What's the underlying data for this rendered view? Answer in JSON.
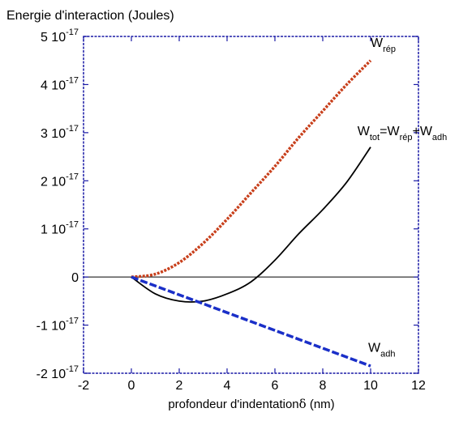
{
  "chart_data": {
    "type": "line",
    "title": "Energie d'interaction (Joules)",
    "xlabel_text": "profondeur d'indentation",
    "xlabel_symbol": "δ",
    "xlabel_unit": " (nm)",
    "xlim": [
      -2,
      12
    ],
    "ylim": [
      -2e-17,
      5e-17
    ],
    "x_ticks": [
      -2,
      0,
      2,
      4,
      6,
      8,
      10,
      12
    ],
    "x_tick_labels": [
      "-2",
      "0",
      "2",
      "4",
      "6",
      "8",
      "10",
      "12"
    ],
    "y_ticks": [
      {
        "value": -2e-17,
        "mant": "-2 10",
        "exp": "-17"
      },
      {
        "value": -1e-17,
        "mant": "-1 10",
        "exp": "-17"
      },
      {
        "value": 0,
        "mant": "0",
        "exp": ""
      },
      {
        "value": 1e-17,
        "mant": "1 10",
        "exp": "-17"
      },
      {
        "value": 2e-17,
        "mant": "2 10",
        "exp": "-17"
      },
      {
        "value": 3e-17,
        "mant": "3 10",
        "exp": "-17"
      },
      {
        "value": 4e-17,
        "mant": "4 10",
        "exp": "-17"
      },
      {
        "value": 5e-17,
        "mant": "5 10",
        "exp": "-17"
      }
    ],
    "axis_color": "#1a1aa6",
    "zero_line": true,
    "series": [
      {
        "key": "rep",
        "color": "#c8401c",
        "style": "dotted",
        "x": [
          0,
          1,
          2,
          3,
          4,
          5,
          6,
          7,
          8,
          9,
          10
        ],
        "values": [
          0,
          6e-19,
          3e-18,
          7e-18,
          1.2e-17,
          1.75e-17,
          2.3e-17,
          2.9e-17,
          3.45e-17,
          4e-17,
          4.5e-17
        ]
      },
      {
        "key": "tot",
        "color": "#000000",
        "style": "solid",
        "x": [
          0,
          1,
          2,
          3,
          4,
          5,
          6,
          7,
          8,
          9,
          10
        ],
        "values": [
          0,
          -3.5e-18,
          -5e-18,
          -5e-18,
          -3.5e-18,
          -1e-18,
          3.5e-18,
          9e-18,
          1.4e-17,
          1.97e-17,
          2.7e-17
        ]
      },
      {
        "key": "adh",
        "color": "#1a2fc8",
        "style": "dashed",
        "x": [
          0,
          10
        ],
        "values": [
          0,
          -1.85e-17
        ]
      }
    ],
    "annotations": [
      {
        "key": "ann-w-rep",
        "parts": [
          {
            "t": "W",
            "sub": false
          },
          {
            "t": "rép",
            "sub": true
          }
        ],
        "x": 10.0,
        "y": 4.78e-17
      },
      {
        "key": "ann-w-tot",
        "parts": [
          {
            "t": "W",
            "sub": false
          },
          {
            "t": "tot",
            "sub": true
          },
          {
            "t": "=W",
            "sub": false
          },
          {
            "t": "rép",
            "sub": true
          },
          {
            "t": "+W",
            "sub": false
          },
          {
            "t": "adh",
            "sub": true
          }
        ],
        "x": 9.45,
        "y": 2.95e-17
      },
      {
        "key": "ann-w-adh",
        "parts": [
          {
            "t": "W",
            "sub": false
          },
          {
            "t": "adh",
            "sub": true
          }
        ],
        "x": 9.9,
        "y": -1.55e-17
      }
    ]
  }
}
